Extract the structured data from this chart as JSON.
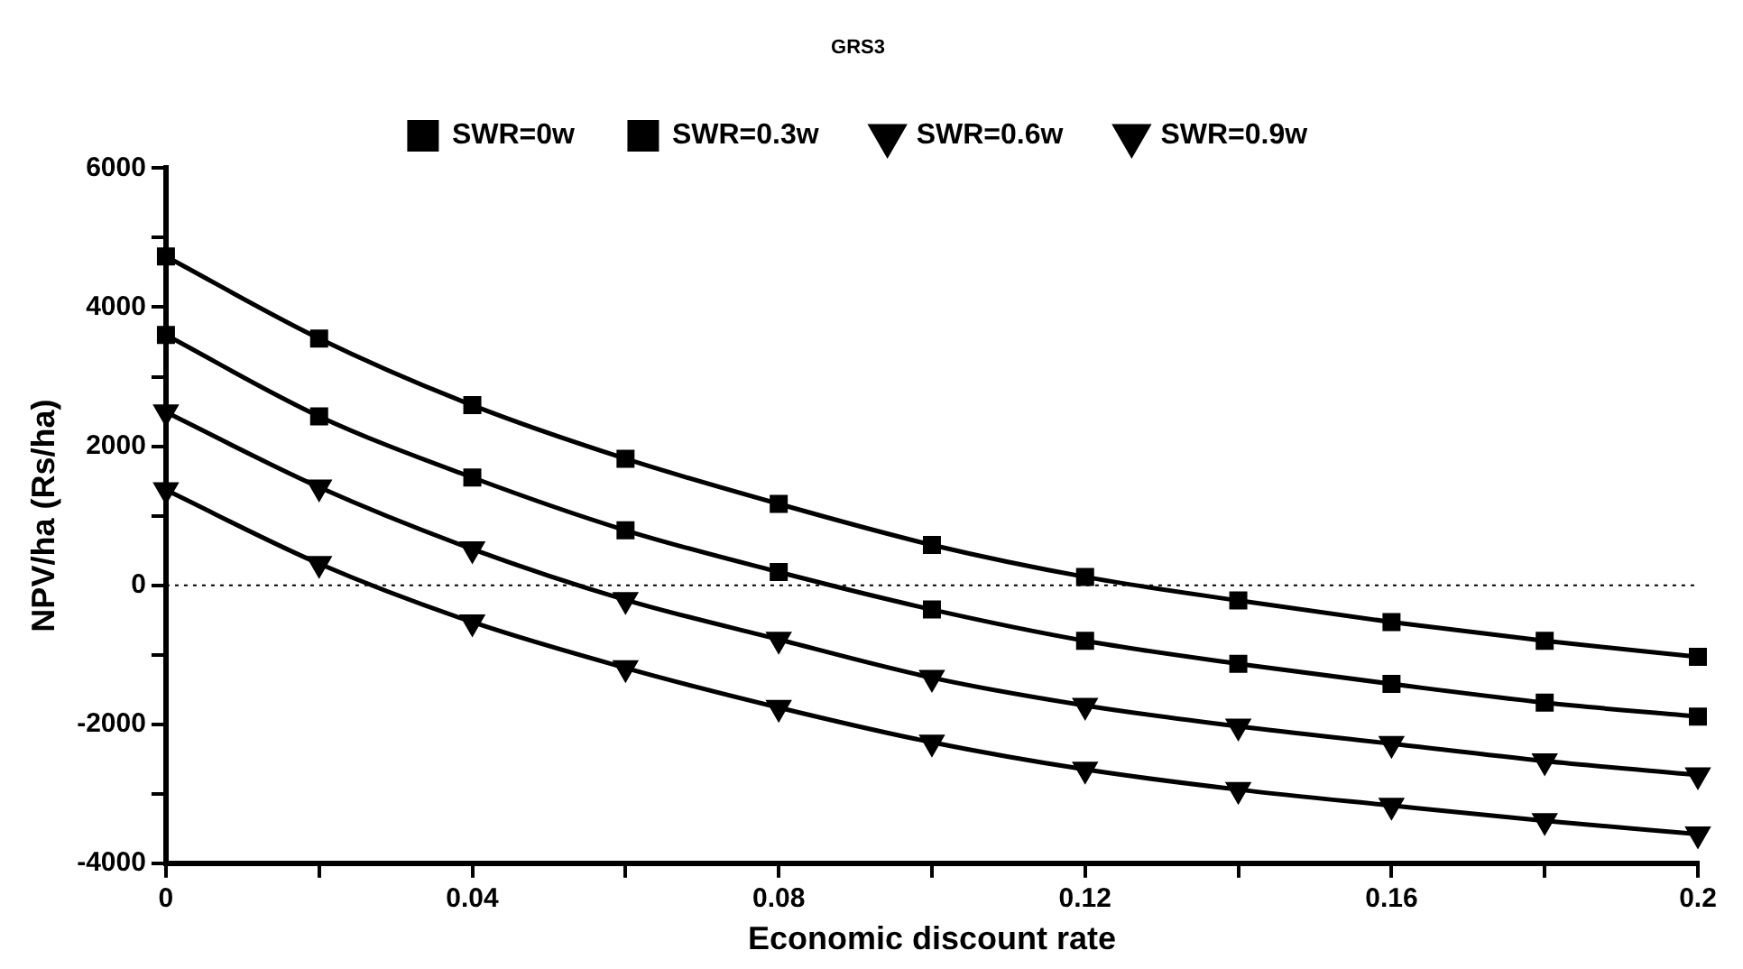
{
  "chart_data": {
    "type": "line",
    "title": "GRS3",
    "xlabel": "Economic discount rate",
    "ylabel": "NPV/ha (Rs/ha)",
    "x": [
      0,
      0.02,
      0.04,
      0.06,
      0.08,
      0.1,
      0.12,
      0.14,
      0.16,
      0.18,
      0.2
    ],
    "series": [
      {
        "name": "SWR=0w",
        "color": "#000000",
        "marker": "square",
        "values": [
          4730,
          3550,
          2590,
          1820,
          1170,
          580,
          120,
          -220,
          -530,
          -800,
          -1030
        ]
      },
      {
        "name": "SWR=0.3w",
        "color": "#000000",
        "marker": "square",
        "values": [
          3600,
          2430,
          1550,
          790,
          190,
          -350,
          -800,
          -1130,
          -1420,
          -1690,
          -1890
        ]
      },
      {
        "name": "SWR=0.6w",
        "color": "#000000",
        "marker": "triangle",
        "values": [
          2490,
          1410,
          520,
          -210,
          -780,
          -1330,
          -1730,
          -2030,
          -2280,
          -2530,
          -2730
        ]
      },
      {
        "name": "SWR=0.9w",
        "color": "#000000",
        "marker": "triangle",
        "values": [
          1370,
          310,
          -530,
          -1190,
          -1760,
          -2260,
          -2650,
          -2940,
          -3170,
          -3390,
          -3580
        ]
      }
    ],
    "xlim": [
      0,
      0.2
    ],
    "xticks": [
      0,
      {
        "value": 0.02,
        "label": null
      },
      0.04,
      {
        "value": 0.06,
        "label": null
      },
      0.08,
      {
        "value": 0.1,
        "label": null
      },
      0.12,
      {
        "value": 0.14,
        "label": null
      },
      0.16,
      {
        "value": 0.18,
        "label": null
      },
      0.2
    ],
    "ylim": [
      -4000,
      6000
    ],
    "yticks": [
      -4000,
      {
        "value": -3000,
        "label": null
      },
      -2000,
      {
        "value": -1000,
        "label": null
      },
      0,
      {
        "value": 1000,
        "label": null
      },
      2000,
      {
        "value": 3000,
        "label": null
      },
      4000,
      {
        "value": 5000,
        "label": null
      },
      6000
    ],
    "ref_lines": [
      {
        "axis": "y",
        "value": 0,
        "line_style": "dotted",
        "color": "#000000"
      }
    ],
    "grid": false,
    "legend": "top",
    "line_style": "solid"
  }
}
